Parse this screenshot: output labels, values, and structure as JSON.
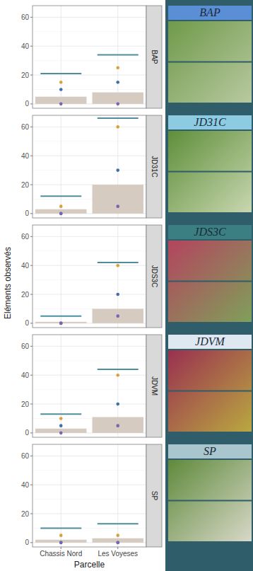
{
  "chart_data": [
    {
      "type": "bar",
      "title": "BAP",
      "y_label": "Eléments observés",
      "categories": [
        "Chassis Nord",
        "Les Voyeses"
      ],
      "ylim": [
        -3,
        68
      ],
      "yticks": [
        0,
        20,
        40,
        60
      ],
      "grid": true,
      "tick_labels": "y",
      "series": [
        {
          "type": "bar",
          "color": "#d5cbc1",
          "values": [
            5,
            8
          ]
        },
        {
          "type": "scatter",
          "marker": "hline",
          "color": "#4e8e9c",
          "values": [
            21,
            34
          ]
        },
        {
          "type": "scatter",
          "marker": "circle",
          "color": "#d9a13b",
          "values": [
            15,
            25
          ]
        },
        {
          "type": "scatter",
          "marker": "circle",
          "color": "#3f6fa8",
          "values": [
            10,
            15
          ]
        },
        {
          "type": "scatter",
          "marker": "circle",
          "color": "#7b62b3",
          "values": [
            0,
            0
          ]
        }
      ]
    },
    {
      "type": "bar",
      "title": "JD31C",
      "categories": [
        "Chassis Nord",
        "Les Voyeses"
      ],
      "ylim": [
        -3,
        68
      ],
      "yticks": [
        0,
        20,
        40,
        60
      ],
      "grid": true,
      "tick_labels": "y",
      "series": [
        {
          "type": "bar",
          "color": "#d5cbc1",
          "values": [
            3,
            20
          ]
        },
        {
          "type": "scatter",
          "marker": "hline",
          "color": "#4e8e9c",
          "values": [
            12,
            66
          ]
        },
        {
          "type": "scatter",
          "marker": "circle",
          "color": "#d9a13b",
          "values": [
            5,
            60
          ]
        },
        {
          "type": "scatter",
          "marker": "circle",
          "color": "#3f6fa8",
          "values": [
            0,
            30
          ]
        },
        {
          "type": "scatter",
          "marker": "circle",
          "color": "#7b62b3",
          "values": [
            0,
            5
          ]
        }
      ]
    },
    {
      "type": "bar",
      "title": "JDS3C",
      "categories": [
        "Chassis Nord",
        "Les Voyeses"
      ],
      "ylim": [
        -3,
        68
      ],
      "yticks": [
        0,
        20,
        40,
        60
      ],
      "grid": true,
      "tick_labels": "y",
      "series": [
        {
          "type": "bar",
          "color": "#d5cbc1",
          "values": [
            1,
            10
          ]
        },
        {
          "type": "scatter",
          "marker": "hline",
          "color": "#4e8e9c",
          "values": [
            5,
            42
          ]
        },
        {
          "type": "scatter",
          "marker": "circle",
          "color": "#d9a13b",
          "values": [
            0,
            40
          ]
        },
        {
          "type": "scatter",
          "marker": "circle",
          "color": "#3f6fa8",
          "values": [
            0,
            20
          ]
        },
        {
          "type": "scatter",
          "marker": "circle",
          "color": "#7b62b3",
          "values": [
            0,
            5
          ]
        }
      ]
    },
    {
      "type": "bar",
      "title": "JDVM",
      "categories": [
        "Chassis Nord",
        "Les Voyeses"
      ],
      "ylim": [
        -3,
        68
      ],
      "yticks": [
        0,
        20,
        40,
        60
      ],
      "grid": true,
      "tick_labels": "y",
      "series": [
        {
          "type": "bar",
          "color": "#d5cbc1",
          "values": [
            3,
            11
          ]
        },
        {
          "type": "scatter",
          "marker": "hline",
          "color": "#4e8e9c",
          "values": [
            13,
            44
          ]
        },
        {
          "type": "scatter",
          "marker": "circle",
          "color": "#d9a13b",
          "values": [
            10,
            40
          ]
        },
        {
          "type": "scatter",
          "marker": "circle",
          "color": "#3f6fa8",
          "values": [
            5,
            20
          ]
        },
        {
          "type": "scatter",
          "marker": "circle",
          "color": "#7b62b3",
          "values": [
            0,
            5
          ]
        }
      ]
    },
    {
      "type": "bar",
      "title": "SP",
      "x_label": "Parcelle",
      "categories": [
        "Chassis Nord",
        "Les Voyeses"
      ],
      "ylim": [
        -3,
        68
      ],
      "yticks": [
        0,
        20,
        40,
        60
      ],
      "grid": true,
      "series": [
        {
          "type": "bar",
          "color": "#d5cbc1",
          "values": [
            2,
            3
          ]
        },
        {
          "type": "scatter",
          "marker": "hline",
          "color": "#4e8e9c",
          "values": [
            10,
            13
          ]
        },
        {
          "type": "scatter",
          "marker": "circle",
          "color": "#d9a13b",
          "values": [
            5,
            5
          ]
        },
        {
          "type": "scatter",
          "marker": "circle",
          "color": "#3f6fa8",
          "values": [
            0,
            0
          ]
        },
        {
          "type": "scatter",
          "marker": "circle",
          "color": "#7b62b3",
          "values": [
            0,
            0
          ]
        }
      ]
    }
  ]
}
